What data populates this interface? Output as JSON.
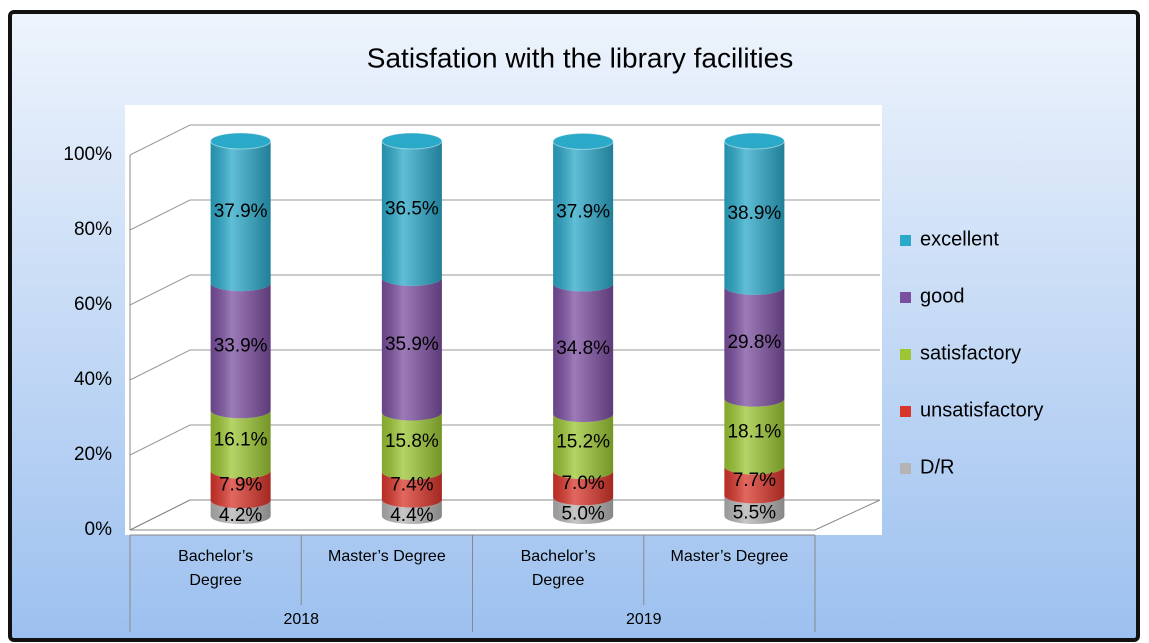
{
  "chart_data": {
    "type": "stacked_cylinder",
    "title": "Satisfation with the library facilities",
    "categories": [
      "Bachelor’s Degree",
      "Master’s Degree",
      "Bachelor’s Degree",
      "Master’s Degree"
    ],
    "groups": [
      "2018",
      "2019"
    ],
    "series": [
      {
        "name": "D/R",
        "color": "#b4b4b4",
        "values": [
          4.2,
          4.4,
          5.0,
          5.5
        ],
        "value_labels": [
          "4.2%",
          "4.4%",
          "5.0%",
          "5.5%"
        ]
      },
      {
        "name": "unsatisfactory",
        "color": "#d8352b",
        "values": [
          7.9,
          7.4,
          7.0,
          7.7
        ],
        "value_labels": [
          "7.9%",
          "7.4%",
          "7.0%",
          "7.7%"
        ]
      },
      {
        "name": "satisfactory",
        "color": "#9cc634",
        "values": [
          16.1,
          15.8,
          15.2,
          18.1
        ],
        "value_labels": [
          "16.1%",
          "15.8%",
          "15.2%",
          "18.1%"
        ]
      },
      {
        "name": "good",
        "color": "#7b4fa0",
        "values": [
          33.9,
          35.9,
          34.8,
          29.8
        ],
        "value_labels": [
          "33.9%",
          "35.9%",
          "34.8%",
          "29.8%"
        ]
      },
      {
        "name": "excellent",
        "color": "#2ba9c9",
        "values": [
          37.9,
          36.5,
          37.9,
          38.9
        ],
        "value_labels": [
          "37.9%",
          "36.5%",
          "37.9%",
          "38.9%"
        ]
      }
    ],
    "ylim": [
      0,
      100
    ],
    "yticks": [
      {
        "value": 0,
        "label": "0%"
      },
      {
        "value": 20,
        "label": "20%"
      },
      {
        "value": 40,
        "label": "40%"
      },
      {
        "value": 60,
        "label": "60%"
      },
      {
        "value": 80,
        "label": "80%"
      },
      {
        "value": 100,
        "label": "100%"
      }
    ],
    "grid": true,
    "legend": "right"
  }
}
